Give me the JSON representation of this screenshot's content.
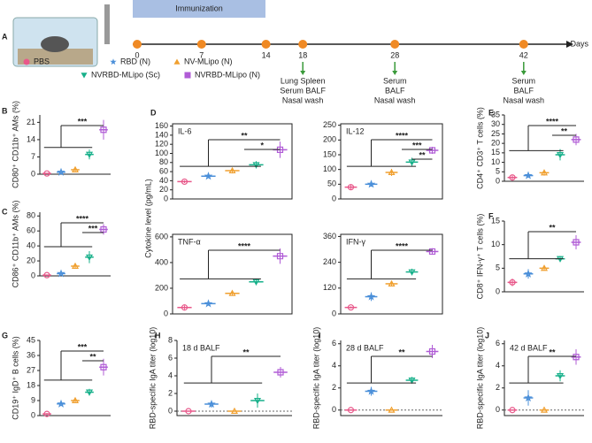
{
  "timeline": {
    "panel": "A",
    "immunization": "Immunization",
    "days": [
      0,
      7,
      14,
      18,
      28,
      42
    ],
    "axis_label": "Days",
    "samples": [
      {
        "day_index": 3,
        "lines": [
          "Lung Spleen",
          "Serum BALF",
          "Nasal wash"
        ]
      },
      {
        "day_index": 4,
        "lines": [
          "Serum",
          "BALF",
          "Nasal wash"
        ]
      },
      {
        "day_index": 5,
        "lines": [
          "Serum",
          "BALF",
          "Nasal wash"
        ]
      }
    ]
  },
  "groups": [
    {
      "name": "PBS",
      "color": "#e8588a"
    },
    {
      "name": "RBD (N)",
      "color": "#4a8fd9"
    },
    {
      "name": "NV-MLipo (N)",
      "color": "#f0a030"
    },
    {
      "name": "NVRBD-MLipo (Sc)",
      "color": "#17b08a"
    },
    {
      "name": "NVRBD-MLipo (N)",
      "color": "#b05cd6"
    }
  ],
  "chart_data": [
    {
      "type": "dot",
      "panel": "B",
      "ylabel": "CD80⁺ CD11b⁺ AMs (%)",
      "values": [
        0.3,
        0.8,
        1.8,
        8,
        18
      ],
      "errors": [
        0.2,
        0.3,
        0.8,
        2,
        4
      ],
      "ylim": [
        0,
        24
      ],
      "yticks": [
        0,
        7,
        14,
        21
      ],
      "annotations": [
        "***"
      ]
    },
    {
      "type": "dot",
      "panel": "C",
      "ylabel": "CD86⁺ CD11b⁺ AMs (%)",
      "values": [
        1,
        3,
        13,
        25,
        62
      ],
      "errors": [
        0.5,
        1,
        3,
        8,
        7
      ],
      "ylim": [
        0,
        85
      ],
      "yticks": [
        0,
        20,
        40,
        60,
        80
      ],
      "annotations": [
        "****",
        "***"
      ]
    },
    {
      "type": "dot",
      "panel": "D",
      "ylabel": "Cytokine level (pg/mL)",
      "title": "IL-6",
      "frame": true,
      "values": [
        38,
        50,
        62,
        75,
        108
      ],
      "errors": [
        3,
        4,
        6,
        8,
        18
      ],
      "ylim": [
        0,
        165
      ],
      "yticks": [
        0,
        20,
        40,
        60,
        80,
        100,
        120,
        140,
        160
      ],
      "annotations": [
        "**",
        "*"
      ]
    },
    {
      "type": "dot",
      "title": "IL-12",
      "frame": true,
      "values": [
        40,
        50,
        90,
        125,
        165
      ],
      "errors": [
        8,
        8,
        12,
        15,
        12
      ],
      "ylim": [
        0,
        255
      ],
      "yticks": [
        0,
        50,
        100,
        150,
        200,
        250
      ],
      "annotations": [
        "****",
        "***",
        "**"
      ]
    },
    {
      "type": "dot",
      "title": "TNF-α",
      "frame": true,
      "values": [
        50,
        80,
        160,
        250,
        450
      ],
      "errors": [
        15,
        15,
        15,
        25,
        60
      ],
      "ylim": [
        0,
        620
      ],
      "yticks": [
        0,
        200,
        400,
        600
      ],
      "annotations": [
        "****"
      ]
    },
    {
      "type": "dot",
      "title": "IFN-γ",
      "frame": true,
      "values": [
        30,
        80,
        140,
        195,
        290
      ],
      "errors": [
        5,
        20,
        10,
        15,
        15
      ],
      "ylim": [
        0,
        370
      ],
      "yticks": [
        0,
        120,
        240,
        360
      ],
      "annotations": [
        "****"
      ]
    },
    {
      "type": "dot",
      "panel": "E",
      "ylabel": "CD4⁺ CD3⁺ T cells (%)",
      "values": [
        2,
        3,
        4.5,
        14,
        22
      ],
      "errors": [
        1,
        0.5,
        1.5,
        3,
        3
      ],
      "ylim": [
        0,
        35
      ],
      "yticks": [
        0,
        5,
        10,
        15,
        20,
        25,
        30,
        35
      ],
      "annotations": [
        "****",
        "**"
      ]
    },
    {
      "type": "dot",
      "panel": "F",
      "ylabel": "CD8⁺ IFN-γ⁺ T cells (%)",
      "values": [
        2,
        3.8,
        5,
        7,
        10.5
      ],
      "errors": [
        0.8,
        1,
        0.5,
        0.6,
        1.5
      ],
      "ylim": [
        0,
        15
      ],
      "yticks": [
        0,
        5,
        10,
        15
      ],
      "annotations": [
        "**"
      ]
    },
    {
      "type": "dot",
      "panel": "G",
      "ylabel": "CD19⁺ IgD⁺ B cells (%)",
      "values": [
        1,
        7,
        9,
        14,
        29
      ],
      "errors": [
        0.5,
        1,
        1,
        2,
        5
      ],
      "ylim": [
        0,
        45
      ],
      "yticks": [
        0,
        9,
        18,
        27,
        36,
        45
      ],
      "annotations": [
        "***",
        "**"
      ]
    },
    {
      "type": "dot",
      "panel": "H",
      "ylabel": "RBD-specific IgA titer (log10)",
      "title": "18 d BALF",
      "values": [
        0,
        0.8,
        0,
        1.2,
        4.4
      ],
      "errors": [
        0,
        0.4,
        0,
        0.8,
        0.6
      ],
      "ylim": [
        -0.5,
        8
      ],
      "yticks": [
        0,
        2,
        4,
        6,
        8
      ],
      "annotations": [
        "**"
      ]
    },
    {
      "type": "dot",
      "panel": "I",
      "ylabel": "RBD-specific IgA titer (log10)",
      "title": "28 d BALF",
      "values": [
        0,
        1.7,
        0,
        2.7,
        5.3
      ],
      "errors": [
        0,
        0.4,
        0,
        0.3,
        0.6
      ],
      "ylim": [
        -0.5,
        6.3
      ],
      "yticks": [
        0,
        2,
        4,
        6
      ],
      "annotations": [
        "**"
      ]
    },
    {
      "type": "dot",
      "panel": "J",
      "ylabel": "RBD-specific IgA titer (log10)",
      "title": "42 d BALF",
      "values": [
        0,
        1.1,
        0,
        3.1,
        4.8
      ],
      "errors": [
        0,
        0.7,
        0,
        0.5,
        0.7
      ],
      "ylim": [
        -0.5,
        6.3
      ],
      "yticks": [
        0,
        2,
        4,
        6
      ],
      "annotations": [
        "**"
      ]
    }
  ]
}
